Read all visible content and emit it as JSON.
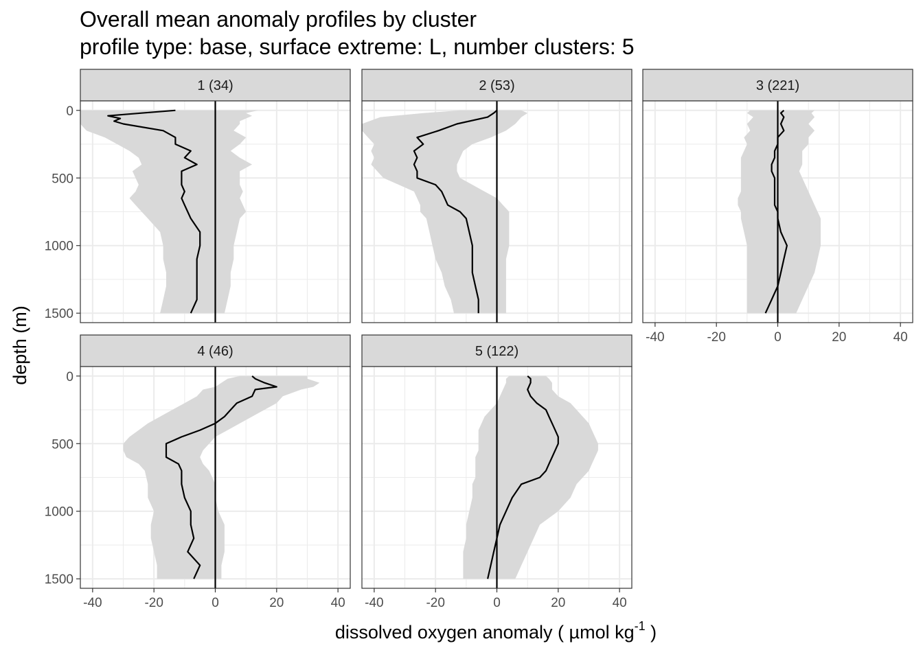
{
  "title": "Overall mean anomaly profiles by cluster",
  "subtitle": "profile type: base, surface extreme: L, number clusters: 5",
  "colors": {
    "ribbon": "#d9d9d9",
    "line": "#000000",
    "strip_fill": "#d9d9d9",
    "grid": "#ebebeb"
  },
  "chart_data": {
    "type": "line",
    "xlabel": "dissolved oxygen anomaly ( µmol kg",
    "xlabel_superscript": "-1",
    "xlabel_suffix": " )",
    "ylabel": "depth (m)",
    "xlim": [
      -44,
      44
    ],
    "ylim": [
      1570,
      -70
    ],
    "x_ticks": [
      -40,
      -20,
      0,
      20,
      40
    ],
    "y_ticks": [
      0,
      500,
      1000,
      1500
    ],
    "panels": [
      {
        "label": "1 (34)",
        "depth": [
          0,
          20,
          40,
          60,
          80,
          100,
          150,
          200,
          250,
          300,
          350,
          400,
          450,
          500,
          550,
          600,
          650,
          700,
          750,
          800,
          900,
          1000,
          1100,
          1200,
          1300,
          1400,
          1500
        ],
        "mean": [
          -13,
          -24,
          -35,
          -31,
          -33,
          -30,
          -17,
          -13,
          -13,
          -8,
          -10,
          -6,
          -11,
          -11,
          -11,
          -10,
          -11,
          -10,
          -9,
          -8,
          -5,
          -5,
          -6,
          -6,
          -6,
          -6,
          -8
        ],
        "lower": [
          -44,
          -44,
          -44,
          -44,
          -44,
          -44,
          -42,
          -36,
          -32,
          -28,
          -25,
          -24,
          -27,
          -26,
          -25,
          -26,
          -28,
          -26,
          -24,
          -22,
          -18,
          -17,
          -17,
          -16,
          -16,
          -17,
          -18
        ],
        "upper": [
          14,
          10,
          12,
          10,
          8,
          8,
          6,
          10,
          8,
          5,
          8,
          12,
          8,
          8,
          8,
          9,
          8,
          9,
          10,
          8,
          7,
          6,
          6,
          5,
          5,
          4,
          3
        ]
      },
      {
        "label": "2 (53)",
        "depth": [
          0,
          20,
          50,
          100,
          150,
          200,
          250,
          300,
          350,
          400,
          450,
          500,
          550,
          600,
          650,
          700,
          750,
          800,
          900,
          1000,
          1100,
          1200,
          1300,
          1400,
          1500
        ],
        "mean": [
          0,
          -1,
          -3,
          -13,
          -19,
          -26,
          -24,
          -27,
          -26,
          -27,
          -26,
          -26,
          -20,
          -18,
          -17,
          -16,
          -12,
          -10,
          -9,
          -8,
          -8,
          -8,
          -7,
          -6,
          -6
        ],
        "lower": [
          -12,
          -24,
          -38,
          -44,
          -44,
          -42,
          -40,
          -41,
          -40,
          -41,
          -39,
          -37,
          -32,
          -27,
          -26,
          -25,
          -25,
          -23,
          -22,
          -21,
          -20,
          -18,
          -17,
          -15,
          -14
        ],
        "upper": [
          8,
          10,
          8,
          6,
          3,
          -2,
          -8,
          -11,
          -12,
          -13,
          -13,
          -12,
          -8,
          -4,
          0,
          2,
          4,
          4,
          4,
          4,
          3,
          3,
          3,
          3,
          3
        ]
      },
      {
        "label": "3 (221)",
        "depth": [
          0,
          20,
          50,
          100,
          150,
          200,
          250,
          300,
          350,
          400,
          450,
          500,
          550,
          600,
          650,
          700,
          750,
          800,
          900,
          1000,
          1100,
          1200,
          1300,
          1400,
          1500
        ],
        "mean": [
          2,
          1,
          2,
          1,
          2,
          0,
          0,
          -1,
          -1,
          -2,
          -2,
          -1,
          -1,
          -1,
          -1,
          -1,
          0,
          0,
          1,
          3,
          2,
          1,
          0,
          -2,
          -4
        ],
        "lower": [
          -9,
          -10,
          -8,
          -10,
          -9,
          -11,
          -10,
          -11,
          -12,
          -12,
          -12,
          -12,
          -12,
          -12,
          -13,
          -13,
          -12,
          -12,
          -11,
          -10,
          -10,
          -10,
          -10,
          -10,
          -10
        ],
        "upper": [
          12,
          11,
          12,
          10,
          12,
          10,
          10,
          8,
          8,
          8,
          7,
          8,
          9,
          10,
          11,
          12,
          13,
          14,
          14,
          14,
          13,
          12,
          10,
          8,
          6
        ]
      },
      {
        "label": "4 (46)",
        "depth": [
          0,
          20,
          50,
          80,
          100,
          150,
          200,
          250,
          300,
          350,
          400,
          450,
          500,
          550,
          600,
          650,
          700,
          800,
          900,
          1000,
          1100,
          1200,
          1300,
          1400,
          1500
        ],
        "mean": [
          12,
          13,
          16,
          20,
          13,
          12,
          7,
          5,
          3,
          0,
          -5,
          -11,
          -16,
          -16,
          -16,
          -12,
          -11,
          -11,
          -10,
          -8,
          -8,
          -7,
          -9,
          -5,
          -7
        ],
        "lower": [
          8,
          4,
          2,
          0,
          -4,
          -6,
          -10,
          -14,
          -18,
          -22,
          -25,
          -28,
          -30,
          -30,
          -29,
          -25,
          -23,
          -22,
          -22,
          -20,
          -21,
          -21,
          -20,
          -19,
          -19
        ],
        "upper": [
          30,
          30,
          34,
          32,
          28,
          22,
          20,
          16,
          12,
          8,
          4,
          0,
          -2,
          -4,
          -5,
          -4,
          -2,
          0,
          0,
          1,
          3,
          3,
          3,
          2,
          2
        ]
      },
      {
        "label": "5 (122)",
        "depth": [
          0,
          20,
          50,
          100,
          150,
          200,
          250,
          300,
          350,
          400,
          450,
          500,
          550,
          600,
          650,
          700,
          750,
          800,
          900,
          1000,
          1100,
          1200,
          1300,
          1400,
          1500
        ],
        "mean": [
          10,
          11,
          11,
          10,
          11,
          13,
          16,
          17,
          18,
          19,
          20,
          20,
          19,
          18,
          17,
          16,
          14,
          8,
          5,
          3,
          1,
          0,
          -1,
          -2,
          -3
        ],
        "lower": [
          4,
          3,
          3,
          2,
          1,
          0,
          -2,
          -4,
          -5,
          -6,
          -6,
          -6,
          -6,
          -7,
          -7,
          -7,
          -7,
          -8,
          -8,
          -9,
          -10,
          -10,
          -11,
          -11,
          -11
        ],
        "upper": [
          16,
          17,
          18,
          18,
          20,
          24,
          26,
          28,
          30,
          31,
          32,
          33,
          33,
          32,
          31,
          30,
          28,
          26,
          24,
          20,
          14,
          12,
          10,
          8,
          6
        ]
      }
    ]
  }
}
